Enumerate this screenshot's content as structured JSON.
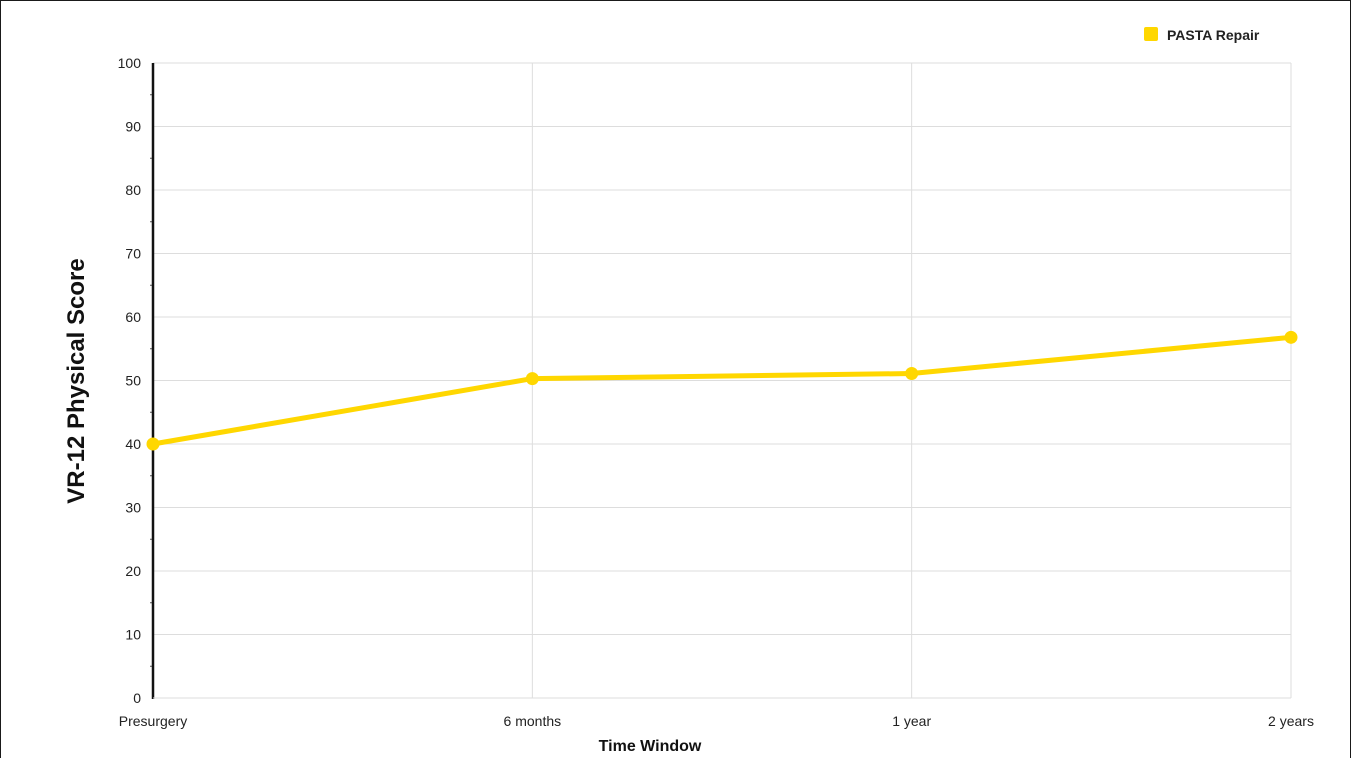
{
  "chart_data": {
    "type": "line",
    "title": "",
    "xlabel": "Time Window",
    "ylabel": "VR-12 Physical Score",
    "categories": [
      "Presurgery",
      "6 months",
      "1 year",
      "2 years"
    ],
    "ylim": [
      0,
      100
    ],
    "yticks": [
      0,
      10,
      20,
      30,
      40,
      50,
      60,
      70,
      80,
      90,
      100
    ],
    "grid": true,
    "legend_position": "top-right",
    "series": [
      {
        "name": "PASTA Repair",
        "color": "#FFD700",
        "values": [
          40.0,
          50.3,
          51.1,
          56.8
        ]
      }
    ]
  }
}
